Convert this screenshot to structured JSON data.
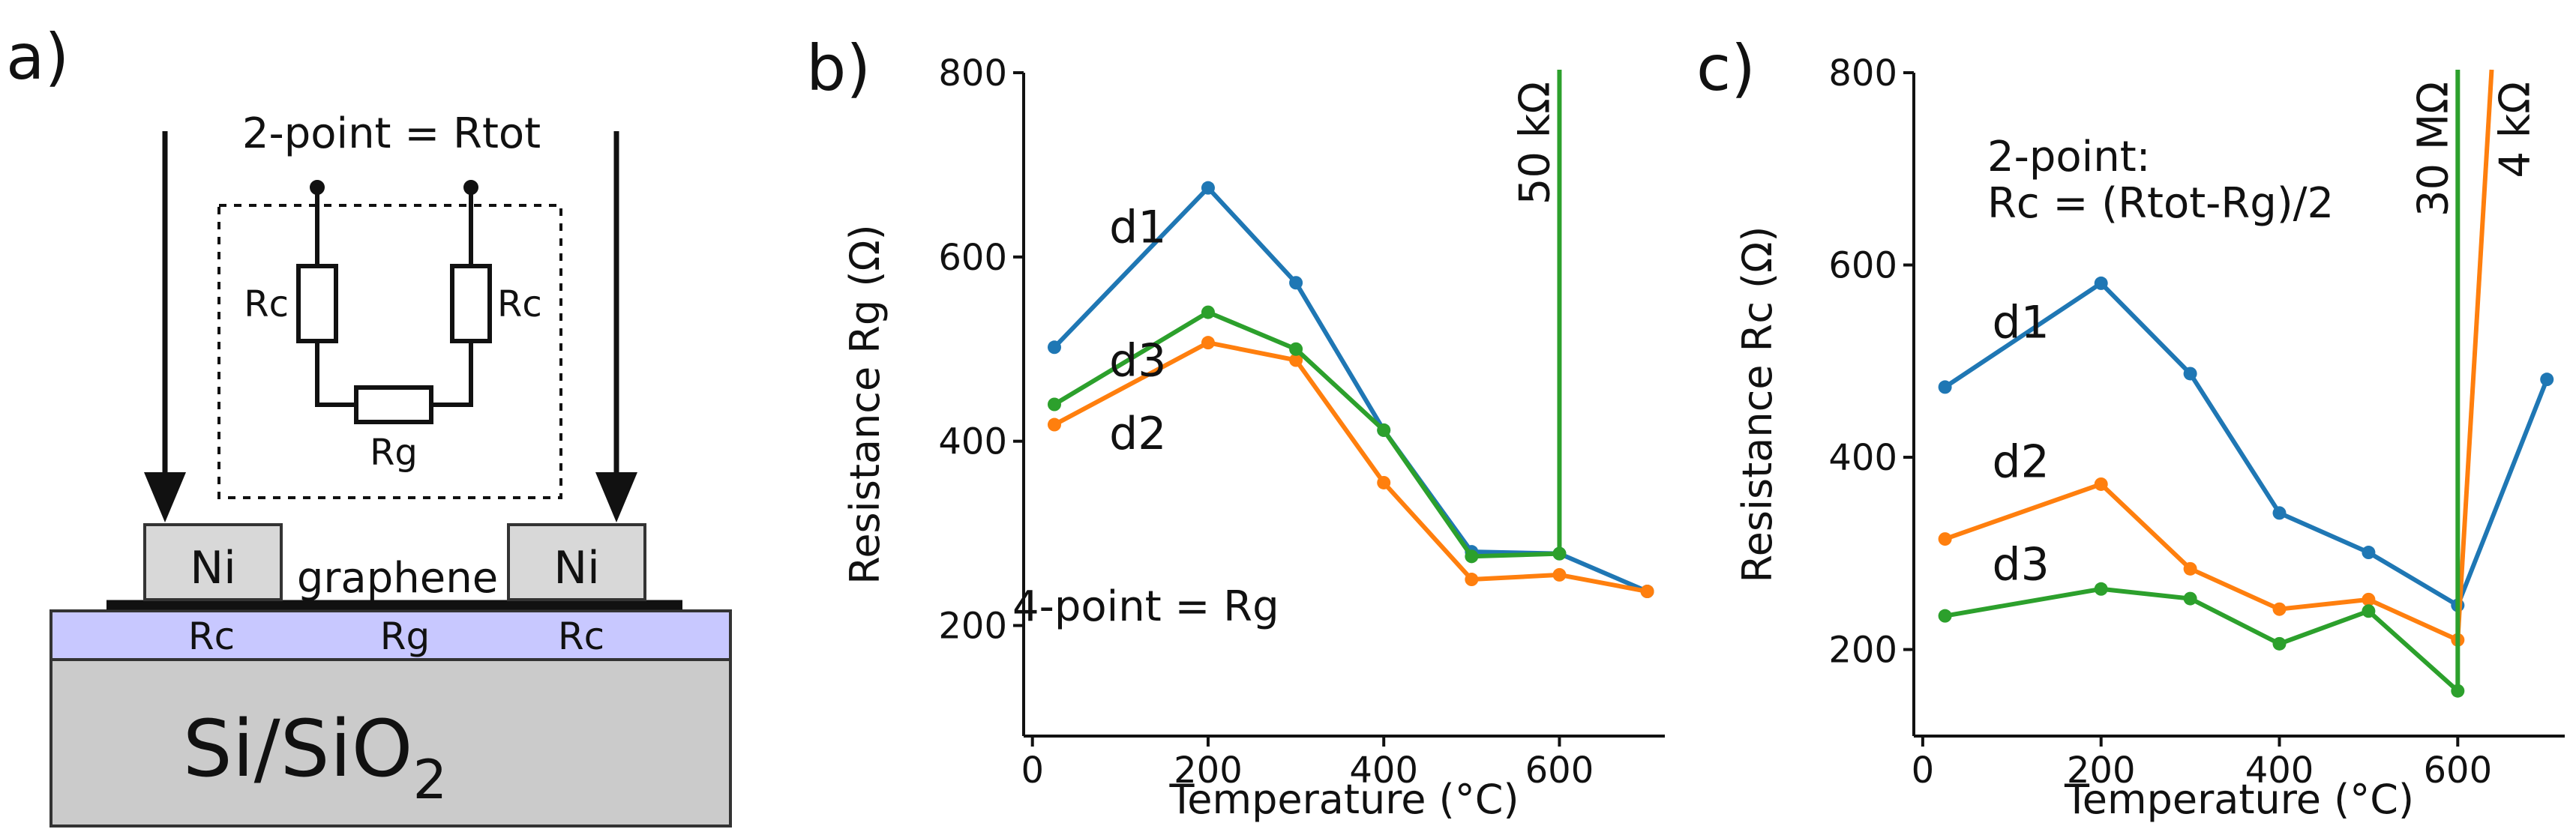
{
  "figure": {
    "panel_a": {
      "label": "a)",
      "circuit_title": "2-point = Rtot",
      "resistor_rc_left": "Rc",
      "resistor_rc_right": "Rc",
      "resistor_rg": "Rg",
      "contact_left": "Ni",
      "contact_right": "Ni",
      "material": "graphene",
      "layer_rc_left": "Rc",
      "layer_rg": "Rg",
      "layer_rc_right": "Rc",
      "substrate_base": "Si/SiO",
      "substrate_sub": "2"
    },
    "colors": {
      "d1": "#1f77b4",
      "d2": "#ff7f0e",
      "d3": "#2ca02c",
      "layer": "#c8c8ff",
      "substrate": "#cbcbcb",
      "contact": "#d8d8d8"
    }
  },
  "chart_data": [
    {
      "id": "b",
      "panel_label": "b)",
      "type": "line",
      "xlabel": "Temperature (°C)",
      "ylabel": "Resistance Rg (Ω)",
      "xlim": [
        -10,
        720
      ],
      "ylim": [
        80,
        800
      ],
      "xticks": [
        0,
        200,
        400,
        600
      ],
      "yticks": [
        200,
        400,
        600,
        800
      ],
      "annotation": "4-point = Rg",
      "series": [
        {
          "name": "d1",
          "color": "#1f77b4",
          "x": [
            25,
            200,
            300,
            400,
            500,
            600,
            700
          ],
          "y": [
            502,
            675,
            572,
            412,
            280,
            278,
            237
          ],
          "jump": null,
          "label_xy": [
            120,
            632
          ]
        },
        {
          "name": "d2",
          "color": "#ff7f0e",
          "x": [
            25,
            200,
            300,
            400,
            500,
            600,
            700
          ],
          "y": [
            418,
            507,
            488,
            355,
            250,
            255,
            237
          ],
          "jump": null,
          "label_xy": [
            120,
            408
          ]
        },
        {
          "name": "d3",
          "color": "#2ca02c",
          "x": [
            25,
            200,
            300,
            400,
            500,
            600
          ],
          "y": [
            440,
            540,
            500,
            412,
            275,
            278
          ],
          "jump": {
            "from_x": 600,
            "label": "50 kΩ"
          },
          "label_xy": [
            120,
            487
          ]
        }
      ]
    },
    {
      "id": "c",
      "panel_label": "c)",
      "type": "line",
      "xlabel": "Temperature (°C)",
      "ylabel": "Resistance Rc (Ω)",
      "xlim": [
        -10,
        720
      ],
      "ylim": [
        110,
        800
      ],
      "xticks": [
        0,
        200,
        400,
        600
      ],
      "yticks": [
        200,
        400,
        600,
        800
      ],
      "annotation_lines": [
        "2-point:",
        "Rc = (Rtot-Rg)/2"
      ],
      "series": [
        {
          "name": "d1",
          "color": "#1f77b4",
          "x": [
            25,
            200,
            300,
            400,
            500,
            600,
            700
          ],
          "y": [
            473,
            581,
            487,
            342,
            301,
            246,
            481
          ],
          "jump": null,
          "label_xy": [
            110,
            540
          ]
        },
        {
          "name": "d2",
          "color": "#ff7f0e",
          "x": [
            25,
            200,
            300,
            400,
            500,
            600
          ],
          "y": [
            315,
            372,
            284,
            242,
            252,
            210
          ],
          "jump": {
            "to_x": 638,
            "label": "4 kΩ"
          },
          "label_xy": [
            110,
            395
          ]
        },
        {
          "name": "d3",
          "color": "#2ca02c",
          "x": [
            25,
            200,
            300,
            400,
            500,
            600
          ],
          "y": [
            235,
            263,
            253,
            206,
            240,
            157
          ],
          "jump": {
            "from_x": 600,
            "label": "30 MΩ"
          },
          "label_xy": [
            110,
            288
          ]
        }
      ]
    }
  ]
}
